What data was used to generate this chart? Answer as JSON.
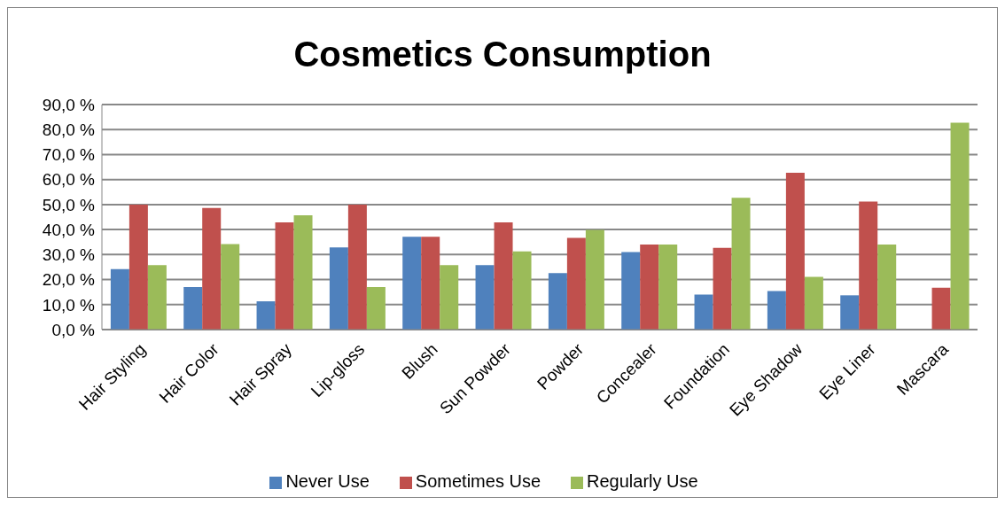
{
  "chart_data": {
    "type": "bar",
    "title": "Cosmetics Consumption",
    "categories": [
      "Hair Styling",
      "Hair Color",
      "Hair Spray",
      "Lip-gloss",
      "Blush",
      "Sun Powder",
      "Powder",
      "Concealer",
      "Foundation",
      "Eye Shadow",
      "Eye Liner",
      "Mascara"
    ],
    "series": [
      {
        "name": "Never Use",
        "color": "#4f81bd",
        "values": [
          24.2,
          17.0,
          11.3,
          32.9,
          37.1,
          25.8,
          22.6,
          31.0,
          14.0,
          15.4,
          13.7,
          0
        ]
      },
      {
        "name": "Sometimes Use",
        "color": "#c0504d",
        "values": [
          50.0,
          48.6,
          42.9,
          50.0,
          37.1,
          42.9,
          36.7,
          34.0,
          32.7,
          62.7,
          51.2,
          16.7
        ]
      },
      {
        "name": "Regularly Use",
        "color": "#9bbb59",
        "values": [
          25.8,
          34.2,
          45.7,
          17.0,
          25.8,
          31.3,
          39.9,
          34.0,
          52.7,
          21.1,
          34.0,
          82.7
        ]
      }
    ],
    "ylim": [
      0,
      90
    ],
    "yticks": [
      {
        "value": 0,
        "label": "0,0 %"
      },
      {
        "value": 10,
        "label": "10,0 %"
      },
      {
        "value": 20,
        "label": "20,0 %"
      },
      {
        "value": 30,
        "label": "30,0 %"
      },
      {
        "value": 40,
        "label": "40,0 %"
      },
      {
        "value": 50,
        "label": "50,0 %"
      },
      {
        "value": 60,
        "label": "60,0 %"
      },
      {
        "value": 70,
        "label": "70,0 %"
      },
      {
        "value": 80,
        "label": "80,0 %"
      },
      {
        "value": 90,
        "label": "90,0 %"
      }
    ],
    "grid": "y",
    "legend": "bottom"
  }
}
